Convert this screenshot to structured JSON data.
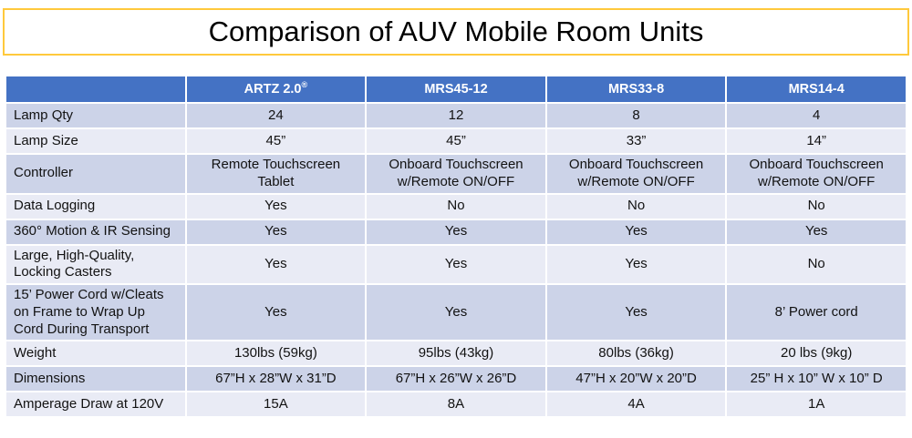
{
  "title": "Comparison of AUV Mobile Room Units",
  "colors": {
    "header_bg": "#4472c4",
    "band_dark": "#ccd3e8",
    "band_light": "#e9ebf5",
    "title_border": "#ffc93c"
  },
  "table": {
    "columns": [
      {
        "label": ""
      },
      {
        "label": "ARTZ 2.0",
        "sup": "®"
      },
      {
        "label": "MRS45-12"
      },
      {
        "label": "MRS33-8"
      },
      {
        "label": "MRS14-4"
      }
    ],
    "rows": [
      {
        "label": "Lamp Qty",
        "values": [
          "24",
          "12",
          "8",
          "4"
        ]
      },
      {
        "label": "Lamp Size",
        "values": [
          "45”",
          "45”",
          "33”",
          "14”"
        ]
      },
      {
        "label": "Controller",
        "values": [
          "Remote Touchscreen Tablet",
          "Onboard Touchscreen w/Remote ON/OFF",
          "Onboard Touchscreen w/Remote ON/OFF",
          "Onboard Touchscreen w/Remote ON/OFF"
        ]
      },
      {
        "label": "Data Logging",
        "values": [
          "Yes",
          "No",
          "No",
          "No"
        ]
      },
      {
        "label": "360° Motion & IR Sensing",
        "values": [
          "Yes",
          "Yes",
          "Yes",
          "Yes"
        ]
      },
      {
        "label": "Large, High-Quality, Locking Casters",
        "values": [
          "Yes",
          "Yes",
          "Yes",
          "No"
        ],
        "top_aligned_cols": [
          2,
          3
        ]
      },
      {
        "label": "15’ Power Cord w/Cleats on Frame to Wrap Up Cord During Transport",
        "values": [
          "Yes",
          "Yes",
          "Yes",
          "8’ Power cord"
        ]
      },
      {
        "label": "Weight",
        "values": [
          "130lbs (59kg)",
          "95lbs (43kg)",
          "80lbs (36kg)",
          "20 lbs (9kg)"
        ]
      },
      {
        "label": "Dimensions",
        "values": [
          "67”H x 28”W x 31”D",
          "67”H x 26”W x 26”D",
          "47”H x 20”W x 20”D",
          "25” H x 10” W x 10” D"
        ]
      },
      {
        "label": "Amperage Draw at 120V",
        "values": [
          "15A",
          "8A",
          "4A",
          "1A"
        ]
      }
    ]
  }
}
